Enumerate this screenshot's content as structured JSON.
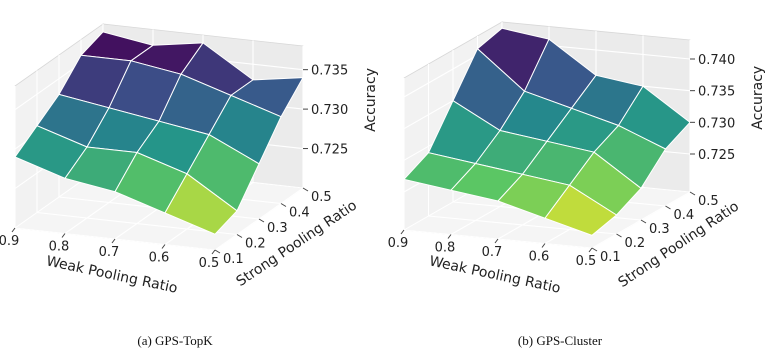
{
  "charts": [
    {
      "caption": "(a) GPS-TopK"
    },
    {
      "caption": "(b) GPS-Cluster"
    }
  ],
  "chart_data": [
    {
      "type": "surface",
      "title": "",
      "xlabel": "Weak Pooling Ratio",
      "ylabel": "Strong Pooling Ratio",
      "zlabel": "Accuracy",
      "x": [
        0.9,
        0.8,
        0.7,
        0.6,
        0.5
      ],
      "y": [
        0.1,
        0.2,
        0.3,
        0.4,
        0.5
      ],
      "x_ticks": [
        "0.9",
        "0.8",
        "0.7",
        "0.6",
        "0.5"
      ],
      "y_ticks": [
        "0.1",
        "0.2",
        "0.3",
        "0.4",
        "0.5"
      ],
      "z_ticks": [
        "0.725",
        "0.730",
        "0.735"
      ],
      "zlim": [
        0.722,
        0.738
      ],
      "z": [
        [
          0.729,
          0.731,
          0.733,
          0.736,
          0.737
        ],
        [
          0.727,
          0.729,
          0.732,
          0.736,
          0.736
        ],
        [
          0.726,
          0.729,
          0.731,
          0.735,
          0.737
        ],
        [
          0.724,
          0.727,
          0.73,
          0.733,
          0.733
        ],
        [
          0.722,
          0.723,
          0.727,
          0.731,
          0.734
        ]
      ],
      "colormap": [
        "#440154",
        "#3b528b",
        "#21918c",
        "#5ec962",
        "#fde725"
      ],
      "grid": true
    },
    {
      "type": "surface",
      "title": "",
      "xlabel": "Weak Pooling Ratio",
      "ylabel": "Strong Pooling Ratio",
      "zlabel": "Accuracy",
      "x": [
        0.9,
        0.8,
        0.7,
        0.6,
        0.5
      ],
      "y": [
        0.1,
        0.2,
        0.3,
        0.4,
        0.5
      ],
      "x_ticks": [
        "0.9",
        "0.8",
        "0.7",
        "0.6",
        "0.5"
      ],
      "y_ticks": [
        "0.1",
        "0.2",
        "0.3",
        "0.4",
        "0.5"
      ],
      "z_ticks": [
        "0.725",
        "0.730",
        "0.735",
        "0.740"
      ],
      "zlim": [
        0.72,
        0.742
      ],
      "z": [
        [
          0.727,
          0.729,
          0.735,
          0.741,
          0.742
        ],
        [
          0.726,
          0.728,
          0.731,
          0.735,
          0.741
        ],
        [
          0.725,
          0.727,
          0.73,
          0.733,
          0.736
        ],
        [
          0.723,
          0.726,
          0.729,
          0.731,
          0.735
        ],
        [
          0.721,
          0.722,
          0.724,
          0.728,
          0.73
        ]
      ],
      "colormap": [
        "#440154",
        "#3b528b",
        "#21918c",
        "#5ec962",
        "#fde725"
      ],
      "grid": true
    }
  ]
}
